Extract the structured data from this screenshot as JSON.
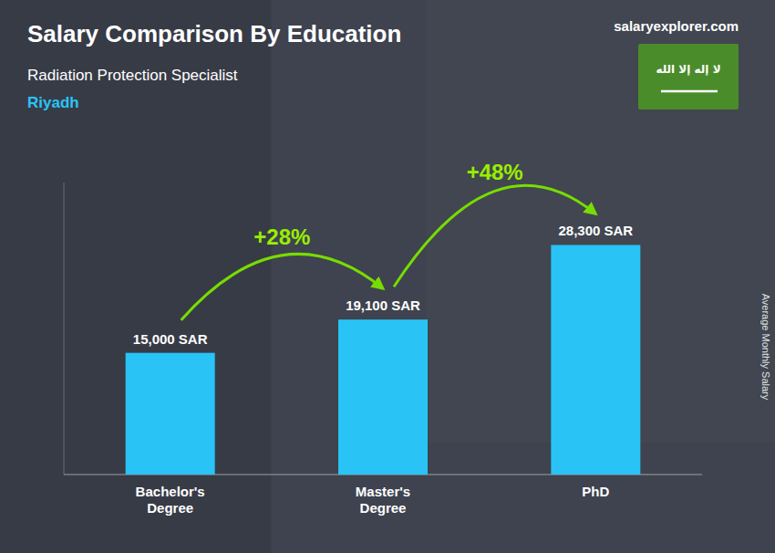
{
  "chart_data": {
    "type": "bar",
    "title": "Salary Comparison By Education",
    "subtitle": "Radiation Protection Specialist",
    "y_label": "Average Monthly Salary",
    "categories": [
      "Bachelor's\nDegree",
      "Master's\nDegree",
      "PhD"
    ],
    "values": [
      15000,
      19100,
      28300
    ],
    "value_labels": [
      "15,000 SAR",
      "19,100 SAR",
      "28,300 SAR"
    ],
    "data_labels": true,
    "color": "#29c4f5",
    "ylim": [
      0,
      36000
    ],
    "tick_labels": "x",
    "annotations": [
      "Riyadh",
      "+28%",
      "+48%",
      "salaryexplorer.com",
      "لا إله إلا الله"
    ]
  }
}
